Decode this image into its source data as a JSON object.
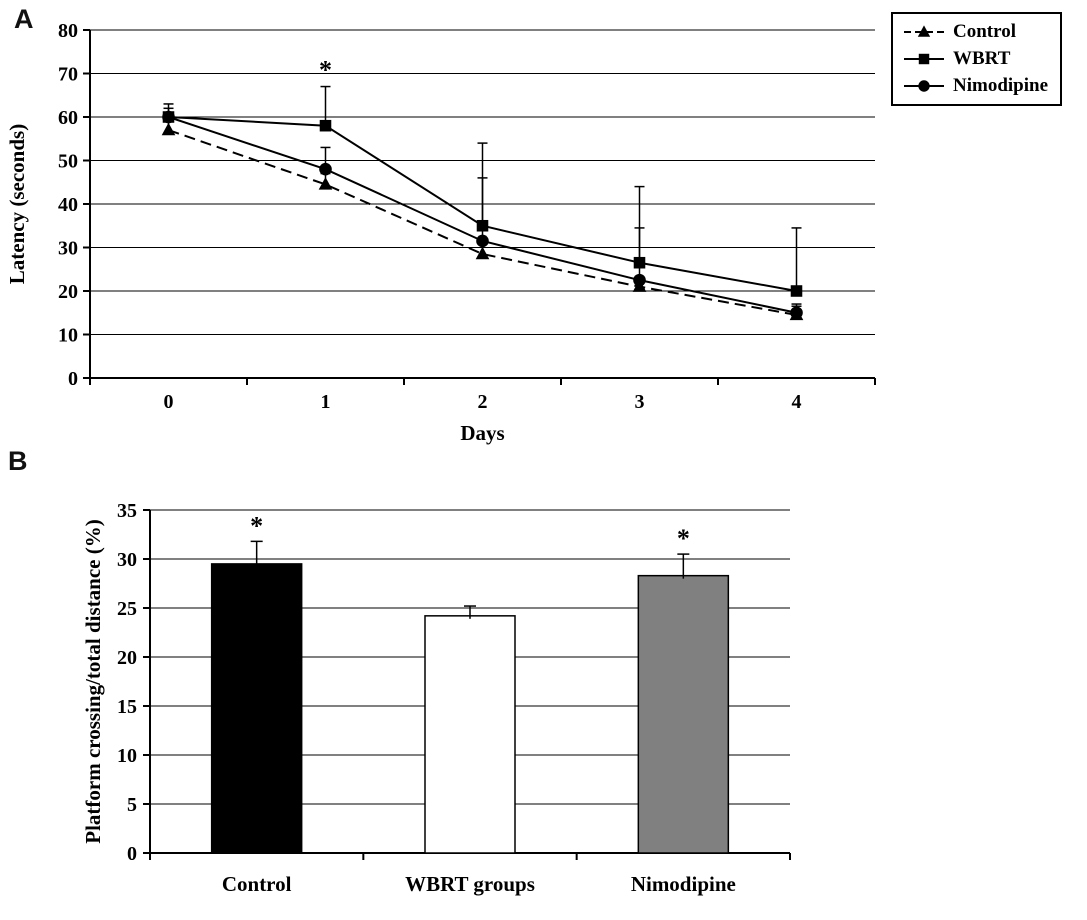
{
  "figure": {
    "panel_a_label": "A",
    "panel_b_label": "B"
  },
  "chart_data": [
    {
      "panel": "A",
      "type": "line",
      "x": [
        0,
        1,
        2,
        3,
        4
      ],
      "xlabel": "Days",
      "ylabel": "Latency (seconds)",
      "ylim": [
        0,
        80
      ],
      "ytick_step": 10,
      "grid": true,
      "legend_position": "top-right",
      "series": [
        {
          "name": "Control",
          "marker": "triangle",
          "line_style": "dashed",
          "color": "#000000",
          "values": [
            57,
            44.5,
            28.5,
            21,
            14.5
          ],
          "errors": [
            2,
            2.5,
            3,
            2,
            2
          ]
        },
        {
          "name": "WBRT",
          "marker": "square",
          "line_style": "solid",
          "color": "#000000",
          "values": [
            60,
            58,
            35,
            26.5,
            20
          ],
          "errors": [
            2,
            9,
            19,
            17.5,
            14.5
          ]
        },
        {
          "name": "Nimodipine",
          "marker": "circle",
          "line_style": "solid",
          "color": "#000000",
          "values": [
            60,
            48,
            31.5,
            22.5,
            15
          ],
          "errors": [
            3,
            5,
            14.5,
            12,
            2
          ]
        }
      ],
      "annotations": [
        {
          "text": "*",
          "series": "WBRT",
          "x": 1
        }
      ]
    },
    {
      "panel": "B",
      "type": "bar",
      "categories": [
        "Control",
        "WBRT groups",
        "Nimodipine"
      ],
      "values": [
        29.5,
        24.2,
        28.3
      ],
      "errors": [
        2.3,
        1.0,
        2.2
      ],
      "bar_colors": [
        "#000000",
        "#ffffff",
        "#808080"
      ],
      "annotations": [
        "*",
        "",
        "*"
      ],
      "xlabel": "",
      "ylabel": "Platform crossing/total distance (%)",
      "ylim": [
        0,
        35
      ],
      "ytick_step": 5,
      "grid": true
    }
  ]
}
